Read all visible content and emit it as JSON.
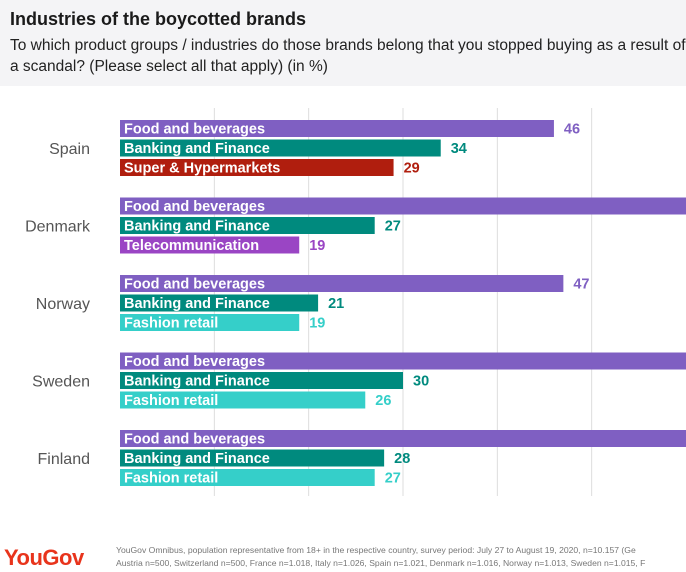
{
  "header": {
    "title": "Industries of the boycotted brands",
    "subtitle": "To which product groups / industries do those brands belong that you stopped buying as a result of a scandal? (Please select all that apply) (in %)"
  },
  "footer": {
    "logo": "YouGov",
    "source_line1": "YouGov Omnibus, population representative from 18+ in the respective country, survey period: July 27 to August 19, 2020, n=10.157 (Ge",
    "source_line2": "Austria n=500, Switzerland n=500, France n=1.018, Italy n=1.026, Spain n=1.021, Denmark n=1.016, Norway n=1.013, Sweden n=1.015, F"
  },
  "colors": {
    "food": "#7f5fc2",
    "banking": "#008a7e",
    "super": "#b01e0e",
    "telecom": "#9a45c4",
    "fashion": "#35cfc9",
    "grid": "#dddddd"
  },
  "chart_data": {
    "type": "bar",
    "orientation": "horizontal",
    "xlim": [
      0,
      60
    ],
    "grid": true,
    "groups": [
      {
        "country": "Spain",
        "bars": [
          {
            "label": "Food and beverages",
            "value": 46,
            "value_label": "46",
            "color_key": "food"
          },
          {
            "label": "Banking and Finance",
            "value": 34,
            "value_label": "34",
            "color_key": "banking"
          },
          {
            "label": "Super & Hypermarkets",
            "value": 29,
            "value_label": "29",
            "color_key": "super"
          }
        ]
      },
      {
        "country": "Denmark",
        "bars": [
          {
            "label": "Food and beverages",
            "value": 60,
            "value_label": "",
            "color_key": "food"
          },
          {
            "label": "Banking and Finance",
            "value": 27,
            "value_label": "27",
            "color_key": "banking"
          },
          {
            "label": "Telecommunication",
            "value": 19,
            "value_label": "19",
            "color_key": "telecom"
          }
        ]
      },
      {
        "country": "Norway",
        "bars": [
          {
            "label": "Food and beverages",
            "value": 47,
            "value_label": "47",
            "color_key": "food"
          },
          {
            "label": "Banking and Finance",
            "value": 21,
            "value_label": "21",
            "color_key": "banking"
          },
          {
            "label": "Fashion retail",
            "value": 19,
            "value_label": "19",
            "color_key": "fashion"
          }
        ]
      },
      {
        "country": "Sweden",
        "bars": [
          {
            "label": "Food and beverages",
            "value": 60,
            "value_label": "",
            "color_key": "food"
          },
          {
            "label": "Banking and Finance",
            "value": 30,
            "value_label": "30",
            "color_key": "banking"
          },
          {
            "label": "Fashion retail",
            "value": 26,
            "value_label": "26",
            "color_key": "fashion"
          }
        ]
      },
      {
        "country": "Finland",
        "bars": [
          {
            "label": "Food and beverages",
            "value": 60,
            "value_label": "",
            "color_key": "food"
          },
          {
            "label": "Banking and Finance",
            "value": 28,
            "value_label": "28",
            "color_key": "banking"
          },
          {
            "label": "Fashion retail",
            "value": 27,
            "value_label": "27",
            "color_key": "fashion"
          }
        ]
      }
    ]
  }
}
